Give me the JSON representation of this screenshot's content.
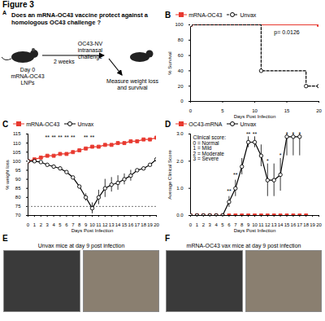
{
  "title": "Figure 3",
  "panel_a": {
    "panel_label": "A",
    "question": "Does an mRNA-OC43 vaccine protect against a homologous OC43 challenge ?",
    "day0": "Day 0",
    "vaccine": "mRNA-OC43 LNPs",
    "challenge": "OC43-NV intranasal challenge",
    "interval": "2 weeks",
    "readout": "Measure weight loss and survival"
  },
  "chart_data": [
    {
      "panel_label": "B",
      "type": "step",
      "x_label": "Days Post Infection",
      "y_label": "% Survival",
      "xlim": [
        0,
        20
      ],
      "xticks": [
        0,
        5,
        10,
        15,
        20
      ],
      "ylim": [
        0,
        100
      ],
      "yticks": [
        0,
        20,
        40,
        60,
        80,
        100
      ],
      "legend": "top",
      "series": [
        {
          "name": "mRNA-OC43",
          "color": "#e8392f",
          "marker": "square",
          "line_style": "solid",
          "x": [
            0,
            20
          ],
          "values": [
            100,
            100
          ]
        },
        {
          "name": "Unvax",
          "color": "#000000",
          "marker": "open-circle",
          "line_style": "dashed",
          "x": [
            0,
            11,
            18,
            20
          ],
          "values": [
            100,
            40,
            20,
            20
          ]
        }
      ],
      "annotations": [
        {
          "text": "p= 0.0126",
          "x": 15,
          "y": 90
        }
      ]
    },
    {
      "panel_label": "C",
      "type": "line",
      "x_label": "Days Post Infection",
      "y_label": "% weight loss",
      "xlim": [
        0,
        20
      ],
      "xticks": [
        0,
        1,
        2,
        3,
        4,
        5,
        6,
        7,
        8,
        9,
        10,
        11,
        12,
        13,
        14,
        15,
        16,
        17,
        18,
        19,
        20
      ],
      "ylim": [
        70,
        115
      ],
      "yticks": [
        70,
        75,
        80,
        85,
        90,
        95,
        100,
        105,
        110,
        115
      ],
      "legend": "top",
      "threshold": 75,
      "series": [
        {
          "name": "mRNA-OC43",
          "color": "#e8392f",
          "marker": "square",
          "line_style": "solid",
          "x": [
            0,
            1,
            2,
            3,
            4,
            5,
            6,
            7,
            8,
            9,
            10,
            11,
            12,
            13,
            14,
            15,
            16,
            17,
            18,
            19,
            20
          ],
          "values": [
            100,
            101,
            102,
            103,
            103,
            104,
            104,
            105,
            106,
            107,
            108,
            108,
            109,
            109,
            110,
            110,
            111,
            111,
            112,
            112,
            113
          ]
        },
        {
          "name": "Unvax",
          "color": "#000000",
          "marker": "open-circle",
          "line_style": "solid",
          "x": [
            0,
            1,
            2,
            3,
            4,
            5,
            6,
            7,
            8,
            9,
            10,
            11,
            12,
            13,
            14,
            15,
            16,
            17,
            18,
            19,
            20
          ],
          "values": [
            100,
            100,
            99.5,
            98,
            97,
            96,
            94,
            91,
            86,
            80,
            74,
            80,
            85,
            87,
            88,
            90,
            92,
            95,
            96,
            98,
            101
          ],
          "errors": [
            null,
            null,
            null,
            null,
            null,
            null,
            null,
            null,
            null,
            2,
            3,
            4,
            5,
            4,
            4,
            3,
            3,
            null,
            null,
            null,
            null
          ]
        }
      ],
      "annotations": [
        {
          "text": "**",
          "x": 3,
          "y": 113
        },
        {
          "text": "**",
          "x": 4,
          "y": 113
        },
        {
          "text": "**",
          "x": 5,
          "y": 113
        },
        {
          "text": "**",
          "x": 6,
          "y": 113
        },
        {
          "text": "**",
          "x": 7,
          "y": 113
        },
        {
          "text": "**",
          "x": 9,
          "y": 113
        },
        {
          "text": "**",
          "x": 10,
          "y": 113
        }
      ]
    },
    {
      "panel_label": "D",
      "type": "line",
      "x_label": "Days Post Infection",
      "y_label": "Average Clinical Score",
      "xlim": [
        0,
        20
      ],
      "xticks": [
        0,
        1,
        2,
        3,
        4,
        5,
        6,
        7,
        8,
        9,
        10,
        11,
        12,
        13,
        14,
        15,
        16,
        17,
        18,
        19,
        20
      ],
      "ylim": [
        0,
        3
      ],
      "yticks": [
        0,
        1,
        2,
        3
      ],
      "legend": "top",
      "key": [
        "Clinical score:",
        "0 = Normal",
        "1 = Mild",
        "2 = Moderate",
        "3 = Severe"
      ],
      "series": [
        {
          "name": "OC43-mRNA",
          "color": "#e8392f",
          "marker": "square",
          "line_style": "solid",
          "x": [
            0,
            1,
            2,
            3,
            4,
            5,
            6,
            7,
            8,
            9,
            10,
            11,
            12,
            13,
            14,
            15,
            16,
            17,
            18
          ],
          "values": [
            0,
            0,
            0,
            0,
            0,
            0,
            0,
            0,
            0,
            0,
            0,
            0,
            0,
            0,
            0,
            0,
            0,
            0,
            0
          ]
        },
        {
          "name": "Unvax",
          "color": "#000000",
          "marker": "open-circle",
          "line_style": "solid",
          "x": [
            0,
            1,
            2,
            3,
            4,
            5,
            6,
            7,
            8,
            9,
            10,
            11,
            12,
            13,
            14,
            15,
            16,
            17
          ],
          "values": [
            0,
            0,
            0,
            0,
            0,
            0,
            0.5,
            1,
            1.8,
            2.7,
            2.7,
            2.2,
            1.3,
            1.3,
            1.5,
            2.9,
            2.9,
            2.9
          ],
          "errors": [
            null,
            null,
            null,
            null,
            null,
            null,
            0.2,
            0.3,
            0.3,
            0.2,
            0.2,
            0.4,
            0.6,
            0.6,
            0.6,
            0.7,
            0.7,
            0.7
          ]
        }
      ],
      "annotations": [
        {
          "text": "**",
          "x": 6,
          "y": 0.9
        },
        {
          "text": "**",
          "x": 7,
          "y": 1.5
        },
        {
          "text": "**",
          "x": 9,
          "y": 3
        },
        {
          "text": "**",
          "x": 10,
          "y": 3
        },
        {
          "text": "*",
          "x": 12,
          "y": 2
        },
        {
          "text": "*",
          "x": 14,
          "y": 2.2
        },
        {
          "text": "*",
          "x": 15,
          "y": 3
        },
        {
          "text": "*",
          "x": 16,
          "y": 3
        },
        {
          "text": "*",
          "x": 17,
          "y": 3
        }
      ]
    }
  ],
  "panel_e": {
    "panel_label": "E",
    "caption": "Unvax mice at day 9 post infection"
  },
  "panel_f": {
    "panel_label": "F",
    "caption": "mRNA-OC43 vax mice at day 9 post infection"
  }
}
